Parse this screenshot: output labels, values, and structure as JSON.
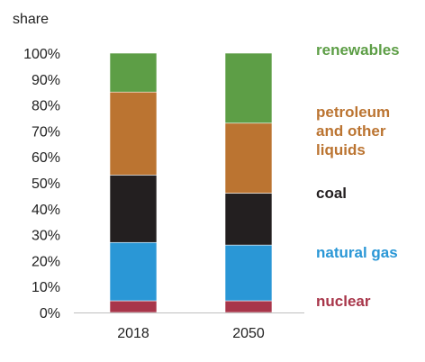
{
  "chart_data": {
    "type": "bar",
    "stacked": true,
    "ylabel": "share",
    "categories": [
      "2018",
      "2050"
    ],
    "ylim": [
      0,
      100
    ],
    "y_ticks": [
      "0%",
      "10%",
      "20%",
      "30%",
      "40%",
      "50%",
      "60%",
      "70%",
      "80%",
      "90%",
      "100%"
    ],
    "grid": false,
    "legend_placement": "right",
    "series": [
      {
        "name": "nuclear",
        "values": [
          4.5,
          4.5
        ],
        "color": "#a8364a",
        "legend_lines": [
          "nuclear"
        ]
      },
      {
        "name": "natural gas",
        "values": [
          22.5,
          21.5
        ],
        "color": "#2a97d6",
        "legend_lines": [
          "natural gas"
        ]
      },
      {
        "name": "coal",
        "values": [
          26,
          20
        ],
        "color": "#231f20",
        "legend_lines": [
          "coal"
        ]
      },
      {
        "name": "petroleum and other liquids",
        "values": [
          32,
          27
        ],
        "color": "#bb7431",
        "legend_lines": [
          "petroleum",
          "and other",
          "liquids"
        ]
      },
      {
        "name": "renewables",
        "values": [
          15,
          27
        ],
        "color": "#5d9e46",
        "legend_lines": [
          "renewables"
        ]
      }
    ]
  }
}
